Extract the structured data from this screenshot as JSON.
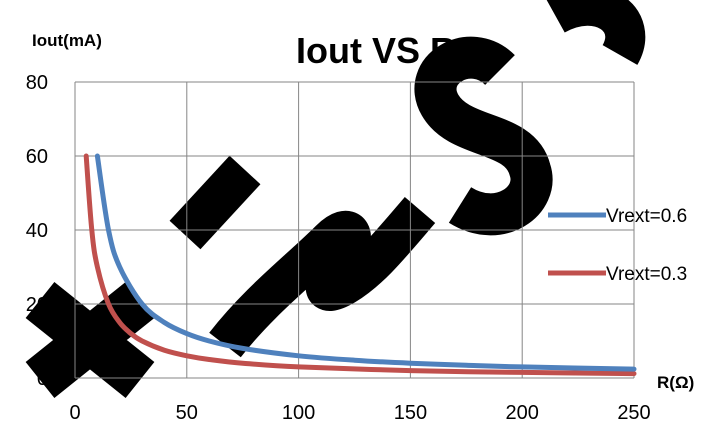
{
  "chart_data": {
    "type": "line",
    "title": "Iout VS R",
    "xlabel": "R(Ω)",
    "ylabel": "Iout(mA)",
    "xlim": [
      0,
      250
    ],
    "ylim": [
      0,
      80
    ],
    "x_ticks": [
      "0",
      "50",
      "100",
      "150",
      "200",
      "250"
    ],
    "y_ticks": [
      "0",
      "20",
      "40",
      "60",
      "80"
    ],
    "grid": true,
    "legend_placement": "right",
    "series": [
      {
        "name": "Vrext=0.6",
        "color": "#4f81bd",
        "x": [
          10,
          15,
          20,
          30,
          40,
          50,
          60,
          75,
          100,
          125,
          150,
          175,
          200,
          250
        ],
        "y": [
          60,
          40,
          30,
          20,
          15,
          12,
          10,
          8,
          6,
          4.8,
          4,
          3.43,
          3,
          2.4
        ]
      },
      {
        "name": "Vrext=0.3",
        "color": "#c0504d",
        "x": [
          5,
          7.5,
          10,
          15,
          20,
          25,
          30,
          40,
          50,
          60,
          75,
          100,
          150,
          200,
          250
        ],
        "y": [
          60,
          40,
          30,
          20,
          15,
          12,
          10,
          7.5,
          6,
          5,
          4,
          3,
          2,
          1.5,
          1.2
        ]
      }
    ]
  },
  "watermark": "Xin So"
}
